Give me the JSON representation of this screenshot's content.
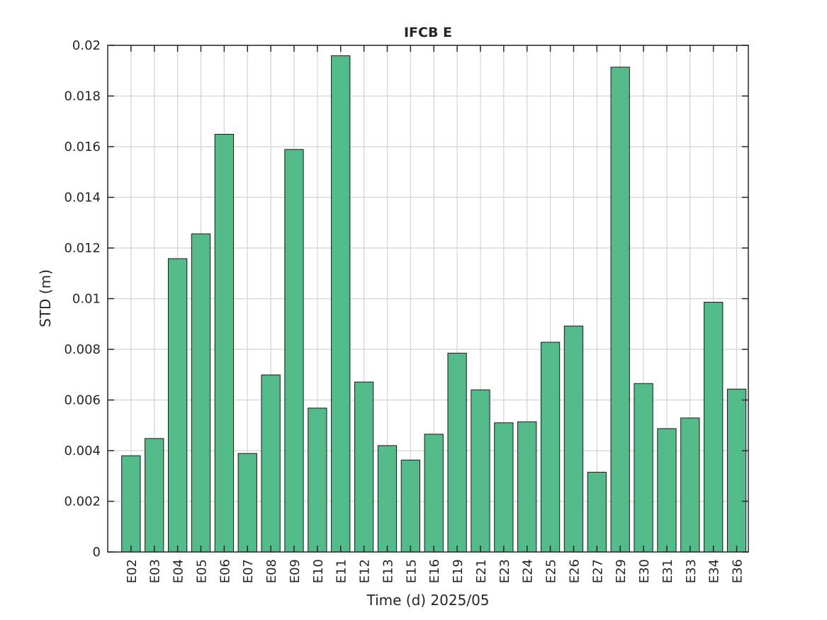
{
  "chart_data": {
    "type": "bar",
    "title": "IFCB E",
    "xlabel": "Time (d)  2025/05",
    "ylabel": "STD (m)",
    "ylim": [
      0,
      0.02
    ],
    "yticks": [
      "0",
      "0.002",
      "0.004",
      "0.006",
      "0.008",
      "0.01",
      "0.012",
      "0.014",
      "0.016",
      "0.018",
      "0.02"
    ],
    "grid": true,
    "bar_color": "#52bb89",
    "categories": [
      "E02",
      "E03",
      "E04",
      "E05",
      "E06",
      "E07",
      "E08",
      "E09",
      "E10",
      "E11",
      "E12",
      "E13",
      "E15",
      "E16",
      "E19",
      "E21",
      "E23",
      "E24",
      "E25",
      "E26",
      "E27",
      "E29",
      "E30",
      "E31",
      "E33",
      "E34",
      "E36"
    ],
    "values": [
      0.0038,
      0.00448,
      0.01158,
      0.01256,
      0.01649,
      0.00389,
      0.00699,
      0.01589,
      0.00568,
      0.01959,
      0.00671,
      0.0042,
      0.00363,
      0.00465,
      0.00785,
      0.0064,
      0.0051,
      0.00514,
      0.00828,
      0.00892,
      0.00315,
      0.01914,
      0.00665,
      0.00487,
      0.00529,
      0.00986,
      0.00643
    ]
  }
}
